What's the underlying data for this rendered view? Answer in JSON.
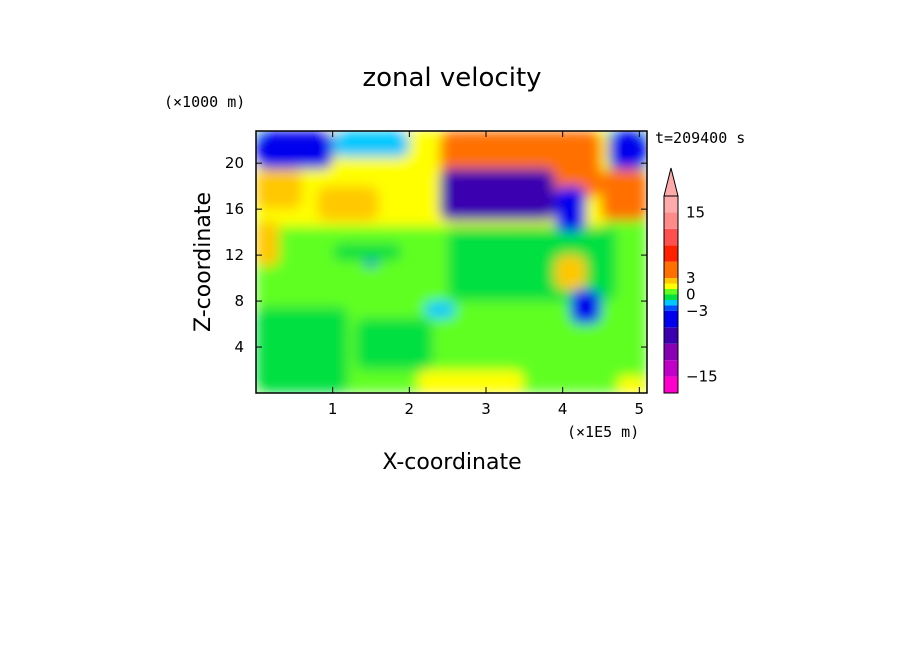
{
  "chart_data": {
    "type": "heatmap",
    "title": "zonal velocity",
    "xlabel": "X-coordinate",
    "ylabel": "Z-coordinate",
    "x_unit": "(×1E5 m)",
    "y_unit": "(×1000 m)",
    "time_label": "t=209400 s",
    "xlim": [
      0,
      5.1
    ],
    "ylim": [
      0,
      22.8
    ],
    "x_ticks": [
      1,
      2,
      3,
      4,
      5
    ],
    "y_ticks": [
      4,
      8,
      12,
      16,
      20
    ],
    "colorbar": {
      "levels": [
        -18,
        -15,
        -12,
        -9,
        -6,
        -3,
        -2,
        -1,
        0,
        1,
        2,
        3,
        6,
        9,
        12,
        15,
        18
      ],
      "colors": [
        "#ff00cc",
        "#c000c8",
        "#8800b4",
        "#3a00b0",
        "#0000ee",
        "#0050ff",
        "#00c8ff",
        "#00e040",
        "#60ff20",
        "#ffff00",
        "#ffc800",
        "#ff7000",
        "#ff2000",
        "#ff5050",
        "#ff8a8a",
        "#ffaaaa"
      ],
      "tick_labels": [
        "15",
        "3",
        "0",
        "−3",
        "−15"
      ],
      "tick_values": [
        15,
        3,
        0,
        -3,
        -15
      ],
      "extend": "max"
    },
    "field_regions": [
      {
        "x": [
          0.0,
          5.1
        ],
        "z": [
          0.0,
          22.8
        ],
        "value": 0.5
      },
      {
        "x": [
          0.0,
          1.2
        ],
        "z": [
          0.0,
          7.5
        ],
        "value": -0.5
      },
      {
        "x": [
          1.3,
          2.3
        ],
        "z": [
          2.0,
          6.5
        ],
        "value": -0.5
      },
      {
        "x": [
          2.1,
          3.5
        ],
        "z": [
          0.0,
          2.0
        ],
        "value": 1.5
      },
      {
        "x": [
          2.5,
          4.7
        ],
        "z": [
          8.0,
          14.5
        ],
        "value": -0.5
      },
      {
        "x": [
          0.0,
          4.6
        ],
        "z": [
          14.5,
          22.8
        ],
        "value": 1.5
      },
      {
        "x": [
          2.4,
          4.5
        ],
        "z": [
          17.0,
          22.8
        ],
        "value": 4.0
      },
      {
        "x": [
          2.4,
          3.9
        ],
        "z": [
          15.0,
          19.5
        ],
        "value": -7.0
      },
      {
        "x": [
          0.0,
          1.0
        ],
        "z": [
          19.5,
          22.8
        ],
        "value": -5.0
      },
      {
        "x": [
          1.0,
          2.0
        ],
        "z": [
          20.5,
          22.8
        ],
        "value": -1.5
      },
      {
        "x": [
          4.6,
          5.1
        ],
        "z": [
          19.5,
          22.8
        ],
        "value": -5.0
      },
      {
        "x": [
          4.5,
          5.1
        ],
        "z": [
          15.0,
          19.5
        ],
        "value": 3.0
      },
      {
        "x": [
          3.9,
          4.3
        ],
        "z": [
          14.0,
          18.0
        ],
        "value": -4.0
      },
      {
        "x": [
          4.1,
          4.5
        ],
        "z": [
          6.0,
          9.0
        ],
        "value": -3.5
      },
      {
        "x": [
          3.9,
          4.3
        ],
        "z": [
          9.0,
          12.0
        ],
        "value": 2.5
      },
      {
        "x": [
          0.0,
          0.6
        ],
        "z": [
          16.0,
          19.5
        ],
        "value": 2.5
      },
      {
        "x": [
          0.8,
          1.6
        ],
        "z": [
          15.0,
          18.0
        ],
        "value": 2.0
      },
      {
        "x": [
          0.0,
          0.3
        ],
        "z": [
          11.0,
          15.0
        ],
        "value": 2.0
      },
      {
        "x": [
          1.4,
          1.6
        ],
        "z": [
          11.0,
          12.0
        ],
        "value": -4.0
      },
      {
        "x": [
          1.0,
          1.9
        ],
        "z": [
          11.5,
          13.0
        ],
        "value": -0.5
      },
      {
        "x": [
          2.2,
          2.6
        ],
        "z": [
          6.5,
          8.0
        ],
        "value": -1.5
      },
      {
        "x": [
          4.7,
          5.1
        ],
        "z": [
          0.0,
          1.5
        ],
        "value": 1.5
      }
    ]
  }
}
